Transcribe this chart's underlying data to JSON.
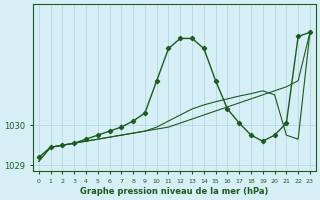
{
  "xlabel": "Graphe pression niveau de la mer (hPa)",
  "background_color": "#d6eef5",
  "grid_color": "#b8d8e2",
  "line_color": "#1a5c1a",
  "hours": [
    0,
    1,
    2,
    3,
    4,
    5,
    6,
    7,
    8,
    9,
    10,
    11,
    12,
    13,
    14,
    15,
    16,
    17,
    18,
    19,
    20,
    21,
    22,
    23
  ],
  "series1": [
    1029.2,
    1029.45,
    1029.5,
    1029.55,
    1029.65,
    1029.75,
    1029.85,
    1029.95,
    1030.1,
    1030.3,
    1031.1,
    1031.9,
    1032.15,
    1032.15,
    1031.9,
    1031.1,
    1030.4,
    1030.05,
    1029.75,
    1029.6,
    1029.75,
    1030.05,
    1032.2,
    1032.3
  ],
  "series2": [
    1029.1,
    1029.45,
    1029.5,
    1029.55,
    1029.6,
    1029.65,
    1029.7,
    1029.75,
    1029.8,
    1029.85,
    1029.9,
    1029.95,
    1030.05,
    1030.15,
    1030.25,
    1030.35,
    1030.45,
    1030.55,
    1030.65,
    1030.75,
    1030.85,
    1030.95,
    1031.1,
    1032.3
  ],
  "series3": [
    1029.1,
    1029.45,
    1029.5,
    1029.55,
    1029.6,
    1029.65,
    1029.7,
    1029.75,
    1029.8,
    1029.85,
    1029.95,
    1030.1,
    1030.25,
    1030.4,
    1030.5,
    1030.58,
    1030.65,
    1030.72,
    1030.78,
    1030.85,
    1030.75,
    1029.75,
    1029.65,
    1032.3
  ],
  "ylim_min": 1028.85,
  "ylim_max": 1033.0,
  "yticks": [
    1029,
    1030
  ],
  "xticks": [
    0,
    1,
    2,
    3,
    4,
    5,
    6,
    7,
    8,
    9,
    10,
    11,
    12,
    13,
    14,
    15,
    16,
    17,
    18,
    19,
    20,
    21,
    22,
    23
  ]
}
